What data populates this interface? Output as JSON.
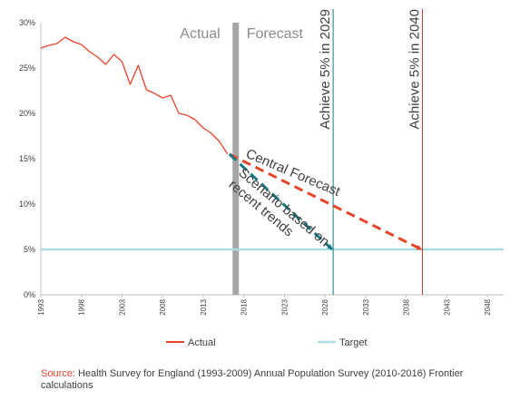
{
  "chart_data": {
    "type": "line",
    "xlim": [
      1993,
      2050
    ],
    "ylim": [
      0,
      30
    ],
    "x_ticks": [
      "1993",
      "1998",
      "2003",
      "2008",
      "2013",
      "2018",
      "2023",
      "2028",
      "2033",
      "2038",
      "2043",
      "2048"
    ],
    "y_ticks": [
      "0%",
      "5%",
      "10%",
      "15%",
      "20%",
      "25%",
      "30%"
    ],
    "series": [
      {
        "name": "Actual",
        "color": "#e8442a",
        "x": [
          1993,
          1994,
          1995,
          1996,
          1997,
          1998,
          1999,
          2000,
          2001,
          2002,
          2003,
          2004,
          2005,
          2006,
          2007,
          2008,
          2009,
          2010,
          2011,
          2012,
          2013,
          2014,
          2015,
          2016
        ],
        "y": [
          27.2,
          27.5,
          27.7,
          28.4,
          27.9,
          27.6,
          26.8,
          26.2,
          25.4,
          26.5,
          25.7,
          23.2,
          25.3,
          22.6,
          22.2,
          21.7,
          22.0,
          20.0,
          19.8,
          19.3,
          18.4,
          17.8,
          16.9,
          15.5
        ]
      },
      {
        "name": "Target",
        "color": "#a9dde2",
        "x": [
          1993,
          2050
        ],
        "y": [
          5,
          5
        ]
      }
    ],
    "forecasts": [
      {
        "label": "Central Forecast",
        "color": "#e8442a",
        "x": [
          2016,
          2040
        ],
        "y": [
          15.5,
          5
        ]
      },
      {
        "label": "Scenario based on recent trends",
        "color": "#167b83",
        "x": [
          2016,
          2029
        ],
        "y": [
          15.5,
          5
        ]
      }
    ],
    "regions": {
      "actual_label": "Actual",
      "forecast_label": "Forecast",
      "boundary_x": 2017
    },
    "vertical_markers": [
      {
        "label": "Achieve  5% in 2029",
        "x": 2029,
        "color": "#167b83"
      },
      {
        "label": "Achieve  5% in 2040",
        "x": 2040,
        "color": "#c0392b"
      }
    ],
    "annotation_lines": [
      "Scenario based on",
      "recent trends"
    ],
    "legend": {
      "placement": "bottom",
      "entries": [
        "Actual",
        "Target"
      ]
    },
    "grid": false
  },
  "source": {
    "label": "Source:",
    "text": " Health Survey for England (1993-2009) Annual Population Survey (2010-2016) Frontier calculations"
  }
}
